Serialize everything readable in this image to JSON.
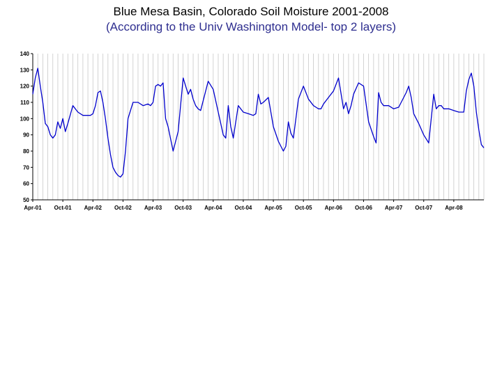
{
  "page": {
    "title": "Blue Mesa Basin, Colorado Soil Moisture 2001-2008",
    "subtitle": "(According to the Univ Washington Model- top 2 layers)"
  },
  "colors": {
    "line": "#0000cc",
    "grid": "#c8c8c8",
    "subtitle": "#2e2e8f"
  },
  "chart_data": {
    "type": "line",
    "title": "Blue Mesa Basin, Colorado Soil Moisture 2001-2008",
    "subtitle": "(According to the Univ Washington Model- top 2 layers)",
    "xlabel": "",
    "ylabel": "",
    "ylim": [
      50,
      140
    ],
    "y_ticks": [
      50,
      60,
      70,
      80,
      90,
      100,
      110,
      120,
      130,
      140
    ],
    "x_ticks": [
      "Apr-01",
      "Oct-01",
      "Apr-02",
      "Oct-02",
      "Apr-03",
      "Oct-03",
      "Apr-04",
      "Oct-04",
      "Apr-05",
      "Oct-05",
      "Apr-06",
      "Oct-06",
      "Apr-07",
      "Oct-07",
      "Apr-08"
    ],
    "x_unit": "months since Apr-01",
    "xlim": [
      0,
      90
    ],
    "grid": "vertical",
    "legend": "none",
    "series": [
      {
        "name": "Soil Moisture",
        "x": [
          0,
          0.5,
          1,
          1.5,
          2,
          2.5,
          3,
          3.5,
          4,
          4.5,
          5,
          5.5,
          6,
          6.5,
          7,
          8,
          9,
          10,
          11,
          11.5,
          12,
          12.5,
          13,
          13.5,
          14,
          14.5,
          15,
          15.5,
          16,
          16.5,
          17,
          17.5,
          18,
          18.5,
          19,
          20,
          21,
          22,
          23,
          23.5,
          24,
          24.5,
          25,
          25.5,
          26,
          26.5,
          27,
          28,
          29,
          30,
          31,
          31.5,
          32,
          32.5,
          33,
          33.5,
          34,
          35,
          36,
          37,
          38,
          38.5,
          39,
          39.5,
          40,
          41,
          42,
          43,
          44,
          44.5,
          45,
          45.5,
          46,
          47,
          48,
          49,
          50,
          50.5,
          51,
          51.5,
          52,
          53,
          54,
          55,
          56,
          56.5,
          57,
          57.5,
          58,
          59,
          60,
          61,
          62,
          62.5,
          63,
          63.5,
          64,
          65,
          66,
          67,
          68,
          68.5,
          69,
          69.5,
          70,
          71,
          72,
          73,
          74,
          74.5,
          75,
          75.5,
          76,
          77,
          78,
          79,
          80,
          80.5,
          81,
          81.5,
          82,
          83,
          84,
          85,
          86,
          86.5,
          87,
          87.5,
          88,
          88.5,
          89,
          89.5,
          90
        ],
        "values": [
          115,
          125,
          131,
          120,
          110,
          97,
          95,
          90,
          88,
          90,
          98,
          94,
          100,
          92,
          97,
          108,
          104,
          102,
          102,
          102,
          103,
          108,
          116,
          117,
          110,
          100,
          88,
          78,
          70,
          67,
          65,
          64,
          66,
          80,
          100,
          110,
          110,
          108,
          109,
          108,
          110,
          120,
          121,
          120,
          122,
          100,
          95,
          80,
          92,
          125,
          115,
          118,
          112,
          108,
          106,
          105,
          111,
          123,
          118,
          104,
          90,
          88,
          108,
          95,
          88,
          108,
          104,
          103,
          102,
          103,
          115,
          109,
          110,
          113,
          95,
          86,
          80,
          83,
          98,
          91,
          88,
          112,
          120,
          112,
          108,
          107,
          106,
          106,
          109,
          113,
          117,
          125,
          106,
          110,
          103,
          108,
          115,
          122,
          120,
          98,
          89,
          85,
          116,
          110,
          108,
          108,
          106,
          107,
          113,
          116,
          120,
          113,
          103,
          97,
          90,
          85,
          115,
          106,
          108,
          108,
          106,
          106,
          105,
          104,
          104,
          117,
          124,
          128,
          120,
          104,
          93,
          84,
          82
        ]
      }
    ]
  }
}
